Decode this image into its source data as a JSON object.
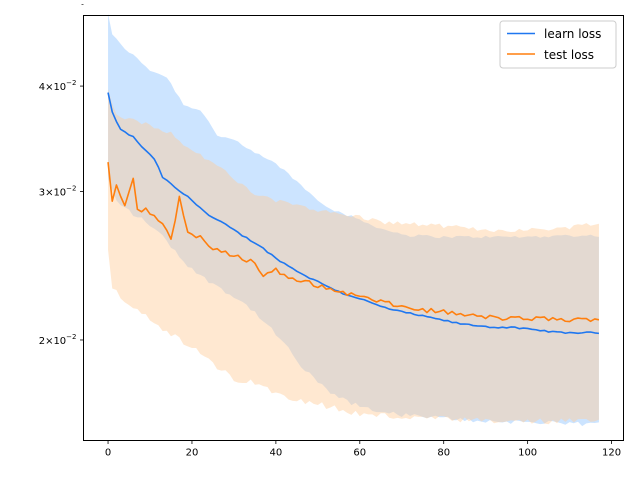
{
  "chart_data": {
    "type": "line",
    "title": "",
    "xlabel": "",
    "ylabel": "",
    "xlim": [
      -5.85,
      122.85
    ],
    "ylim": [
      0.0152,
      0.0485
    ],
    "yscale": "log",
    "x_ticks": [
      0,
      20,
      40,
      60,
      80,
      100,
      120
    ],
    "x_tick_labels": [
      "0",
      "20",
      "40",
      "60",
      "80",
      "100",
      "120"
    ],
    "y_major_ticks": [
      0.02,
      0.03,
      0.04
    ],
    "y_tick_labels": [
      {
        "base": "2",
        "times": "×",
        "mant": "10",
        "exp": "−2"
      },
      {
        "base": "3",
        "times": "×",
        "mant": "10",
        "exp": "−2"
      },
      {
        "base": "4",
        "times": "×",
        "mant": "10",
        "exp": "−2"
      }
    ],
    "y_minor_ticks": [
      0.05
    ],
    "legend": {
      "position": "upper-right",
      "entries": [
        "learn loss",
        "test loss"
      ]
    },
    "series": [
      {
        "name": "learn loss",
        "color": "#1f77f0",
        "band_color": "#8fc3ff",
        "anchors": [
          [
            0,
            0.0393
          ],
          [
            1,
            0.0372
          ],
          [
            3,
            0.0355
          ],
          [
            6,
            0.0348
          ],
          [
            9,
            0.0335
          ],
          [
            11,
            0.0328
          ],
          [
            13,
            0.0312
          ],
          [
            16,
            0.0303
          ],
          [
            20,
            0.0293
          ],
          [
            24,
            0.0281
          ],
          [
            28,
            0.0274
          ],
          [
            32,
            0.0266
          ],
          [
            36,
            0.0259
          ],
          [
            40,
            0.025
          ],
          [
            44,
            0.0243
          ],
          [
            48,
            0.0237
          ],
          [
            52,
            0.0232
          ],
          [
            56,
            0.0227
          ],
          [
            60,
            0.0224
          ],
          [
            64,
            0.022
          ],
          [
            68,
            0.0217
          ],
          [
            72,
            0.0215
          ],
          [
            76,
            0.0213
          ],
          [
            80,
            0.0211
          ],
          [
            84,
            0.0209
          ],
          [
            88,
            0.0208
          ],
          [
            92,
            0.0207
          ],
          [
            96,
            0.0207
          ],
          [
            100,
            0.0206
          ],
          [
            104,
            0.0205
          ],
          [
            108,
            0.0204
          ],
          [
            112,
            0.0204
          ],
          [
            117,
            0.0204
          ]
        ],
        "upper_anchors": [
          [
            0,
            0.0488
          ],
          [
            1,
            0.046
          ],
          [
            3,
            0.0448
          ],
          [
            6,
            0.0435
          ],
          [
            10,
            0.0418
          ],
          [
            14,
            0.041
          ],
          [
            18,
            0.038
          ],
          [
            22,
            0.0375
          ],
          [
            26,
            0.035
          ],
          [
            30,
            0.0345
          ],
          [
            34,
            0.0335
          ],
          [
            38,
            0.0328
          ],
          [
            42,
            0.0318
          ],
          [
            46,
            0.0305
          ],
          [
            50,
            0.0293
          ],
          [
            54,
            0.0285
          ],
          [
            58,
            0.028
          ],
          [
            62,
            0.0275
          ],
          [
            66,
            0.027
          ],
          [
            72,
            0.0266
          ],
          [
            80,
            0.0265
          ],
          [
            90,
            0.0265
          ],
          [
            100,
            0.0265
          ],
          [
            110,
            0.0266
          ],
          [
            117,
            0.0266
          ]
        ],
        "lower_anchors": [
          [
            0,
            0.031
          ],
          [
            2,
            0.0292
          ],
          [
            6,
            0.0282
          ],
          [
            10,
            0.0274
          ],
          [
            14,
            0.0262
          ],
          [
            18,
            0.0248
          ],
          [
            22,
            0.0238
          ],
          [
            26,
            0.0232
          ],
          [
            30,
            0.0225
          ],
          [
            34,
            0.0218
          ],
          [
            38,
            0.0208
          ],
          [
            42,
            0.0198
          ],
          [
            46,
            0.0186
          ],
          [
            50,
            0.0178
          ],
          [
            54,
            0.0172
          ],
          [
            58,
            0.0168
          ],
          [
            62,
            0.0166
          ],
          [
            66,
            0.0164
          ],
          [
            70,
            0.0163
          ],
          [
            76,
            0.0162
          ],
          [
            84,
            0.0161
          ],
          [
            92,
            0.016
          ],
          [
            100,
            0.016
          ],
          [
            108,
            0.0159
          ],
          [
            117,
            0.0159
          ]
        ],
        "noise_amp": 0.004,
        "band_noise_amp": 0.008
      },
      {
        "name": "test loss",
        "color": "#ff7f0e",
        "band_color": "#ffcc9a",
        "anchors": [
          [
            0,
            0.0325
          ],
          [
            1,
            0.0293
          ],
          [
            2,
            0.0305
          ],
          [
            4,
            0.029
          ],
          [
            6,
            0.0311
          ],
          [
            7,
            0.0285
          ],
          [
            9,
            0.0286
          ],
          [
            11,
            0.028
          ],
          [
            13,
            0.0275
          ],
          [
            15,
            0.0262
          ],
          [
            17,
            0.0295
          ],
          [
            19,
            0.0268
          ],
          [
            22,
            0.0265
          ],
          [
            25,
            0.0256
          ],
          [
            30,
            0.0252
          ],
          [
            35,
            0.0247
          ],
          [
            37,
            0.0238
          ],
          [
            40,
            0.0243
          ],
          [
            43,
            0.0236
          ],
          [
            48,
            0.0234
          ],
          [
            52,
            0.023
          ],
          [
            56,
            0.0228
          ],
          [
            60,
            0.0225
          ],
          [
            65,
            0.0222
          ],
          [
            70,
            0.0219
          ],
          [
            75,
            0.0217
          ],
          [
            80,
            0.0216
          ],
          [
            85,
            0.0214
          ],
          [
            90,
            0.0213
          ],
          [
            95,
            0.0212
          ],
          [
            100,
            0.0212
          ],
          [
            105,
            0.0212
          ],
          [
            110,
            0.0211
          ],
          [
            117,
            0.0212
          ]
        ],
        "upper_anchors": [
          [
            0,
            0.0395
          ],
          [
            2,
            0.037
          ],
          [
            5,
            0.0365
          ],
          [
            10,
            0.036
          ],
          [
            15,
            0.0352
          ],
          [
            20,
            0.0335
          ],
          [
            25,
            0.0325
          ],
          [
            30,
            0.031
          ],
          [
            35,
            0.0298
          ],
          [
            40,
            0.0292
          ],
          [
            45,
            0.029
          ],
          [
            50,
            0.0285
          ],
          [
            55,
            0.0282
          ],
          [
            60,
            0.028
          ],
          [
            65,
            0.0276
          ],
          [
            70,
            0.0275
          ],
          [
            80,
            0.0273
          ],
          [
            90,
            0.027
          ],
          [
            100,
            0.027
          ],
          [
            110,
            0.0272
          ],
          [
            117,
            0.0276
          ]
        ],
        "lower_anchors": [
          [
            0,
            0.0255
          ],
          [
            1,
            0.0232
          ],
          [
            3,
            0.0225
          ],
          [
            6,
            0.022
          ],
          [
            10,
            0.0212
          ],
          [
            14,
            0.0205
          ],
          [
            18,
            0.0198
          ],
          [
            22,
            0.0193
          ],
          [
            26,
            0.0185
          ],
          [
            30,
            0.018
          ],
          [
            34,
            0.0178
          ],
          [
            38,
            0.0175
          ],
          [
            42,
            0.0172
          ],
          [
            46,
            0.017
          ],
          [
            50,
            0.0168
          ],
          [
            54,
            0.0166
          ],
          [
            58,
            0.0164
          ],
          [
            62,
            0.0163
          ],
          [
            70,
            0.0162
          ],
          [
            80,
            0.0161
          ],
          [
            90,
            0.016
          ],
          [
            100,
            0.016
          ],
          [
            110,
            0.016
          ],
          [
            117,
            0.016
          ]
        ],
        "noise_amp": 0.012,
        "band_noise_amp": 0.012
      }
    ],
    "n_points": 118,
    "grid": false
  }
}
